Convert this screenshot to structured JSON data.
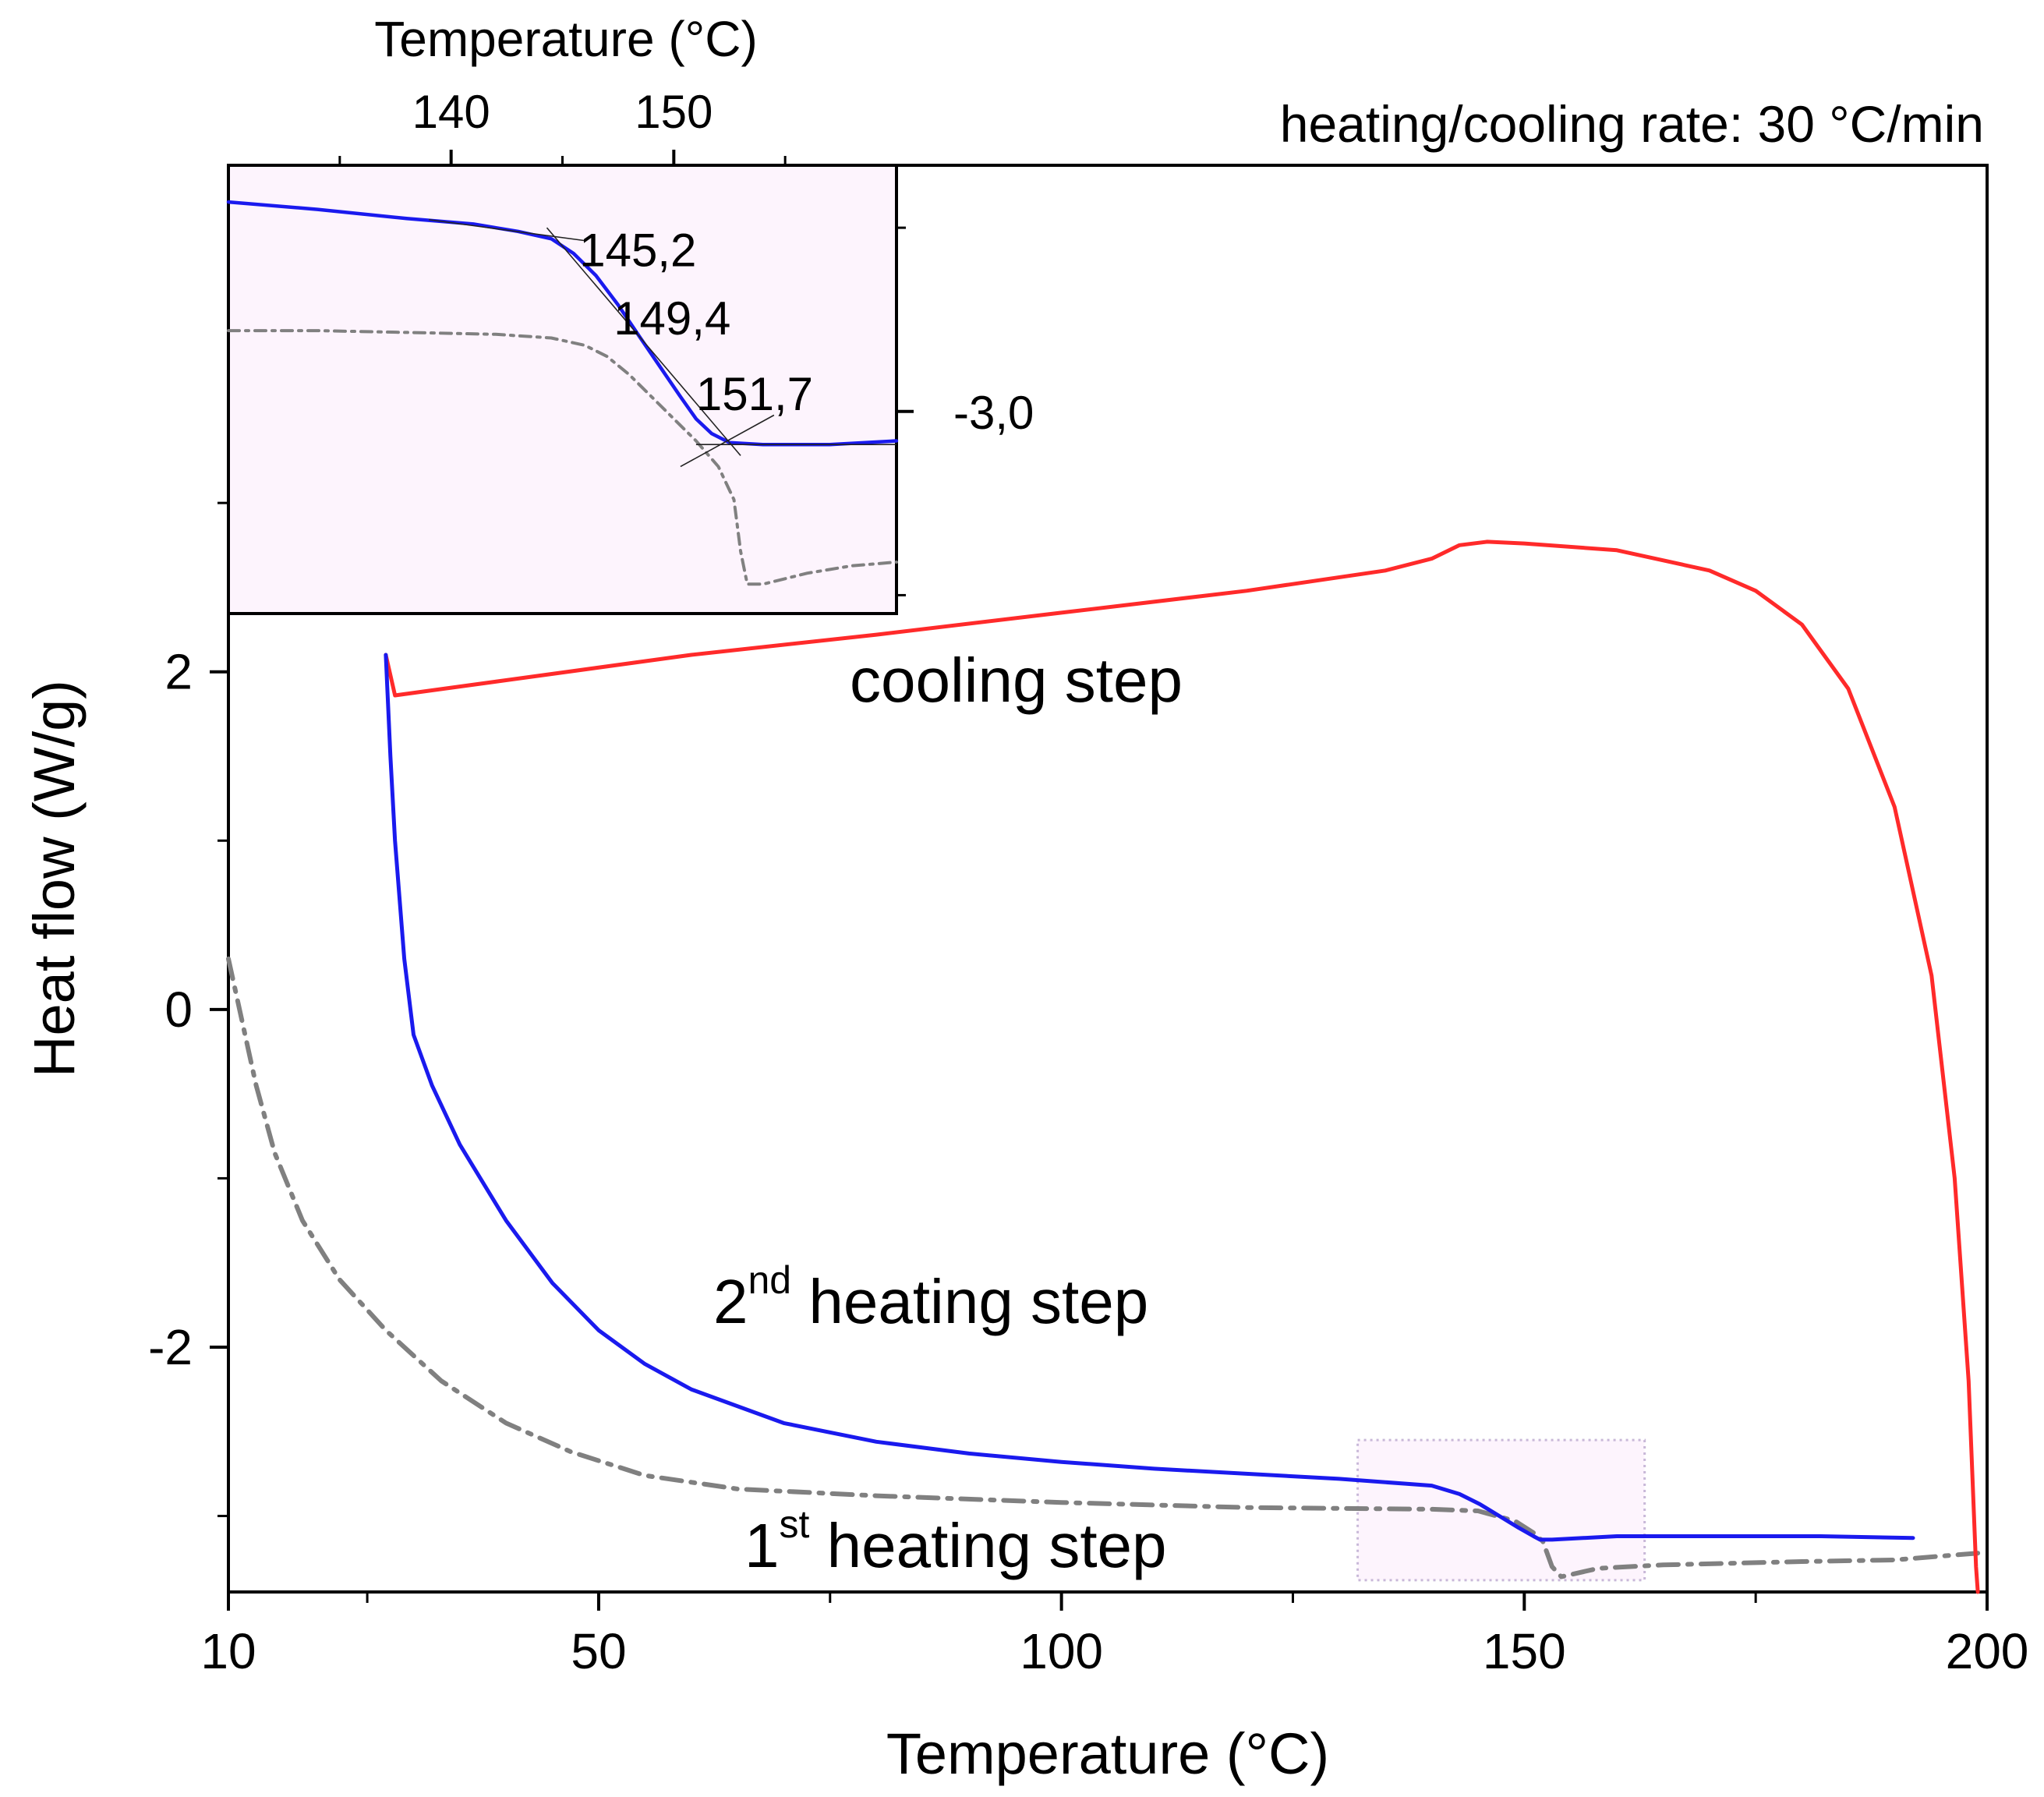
{
  "chart_data": {
    "type": "line",
    "title": "",
    "annotation": "heating/cooling rate: 30 °C/min",
    "xlabel": "Temperature (°C)",
    "ylabel": "Heat flow (W/g)",
    "xlim": [
      10,
      200
    ],
    "ylim": [
      -3.45,
      5.0
    ],
    "xticks": [
      10,
      50,
      100,
      150,
      200
    ],
    "xtick_labels": [
      "10",
      "50",
      "100",
      "150",
      "200"
    ],
    "yticks": [
      -2,
      0,
      2
    ],
    "ytick_labels": [
      "-2",
      "0",
      "2"
    ],
    "colors": {
      "cooling": "#ff2a2a",
      "heating2": "#1a1aee",
      "heating1": "#808080",
      "inset_bg": "#fdf4fd",
      "zoom_box": "#c8b8d8"
    },
    "series": [
      {
        "name": "cooling step",
        "label_main": "cooling step",
        "label_sup": "",
        "label_rest": "",
        "color": "#ff2a2a",
        "style": "solid",
        "points": [
          [
            27,
            2.1
          ],
          [
            28,
            1.86
          ],
          [
            40,
            1.95
          ],
          [
            60,
            2.1
          ],
          [
            80,
            2.22
          ],
          [
            100,
            2.35
          ],
          [
            120,
            2.48
          ],
          [
            135,
            2.6
          ],
          [
            140,
            2.67
          ],
          [
            143,
            2.75
          ],
          [
            146,
            2.77
          ],
          [
            150,
            2.76
          ],
          [
            160,
            2.72
          ],
          [
            170,
            2.6
          ],
          [
            175,
            2.48
          ],
          [
            180,
            2.28
          ],
          [
            185,
            1.9
          ],
          [
            190,
            1.2
          ],
          [
            194,
            0.2
          ],
          [
            196.5,
            -1.0
          ],
          [
            198,
            -2.2
          ],
          [
            198.8,
            -3.3
          ],
          [
            199,
            -3.45
          ]
        ]
      },
      {
        "name": "2nd heating step",
        "label_main": "2",
        "label_sup": "nd",
        "label_rest": " heating step",
        "color": "#1a1aee",
        "style": "solid",
        "points": [
          [
            27,
            2.1
          ],
          [
            27.5,
            1.5
          ],
          [
            28,
            1.0
          ],
          [
            29,
            0.3
          ],
          [
            30,
            -0.15
          ],
          [
            32,
            -0.45
          ],
          [
            35,
            -0.8
          ],
          [
            40,
            -1.25
          ],
          [
            45,
            -1.62
          ],
          [
            50,
            -1.9
          ],
          [
            55,
            -2.1
          ],
          [
            60,
            -2.25
          ],
          [
            70,
            -2.45
          ],
          [
            80,
            -2.56
          ],
          [
            90,
            -2.63
          ],
          [
            100,
            -2.68
          ],
          [
            110,
            -2.72
          ],
          [
            120,
            -2.75
          ],
          [
            130,
            -2.78
          ],
          [
            140,
            -2.82
          ],
          [
            143,
            -2.87
          ],
          [
            145.2,
            -2.93
          ],
          [
            147,
            -2.99
          ],
          [
            149.4,
            -3.07
          ],
          [
            151,
            -3.12
          ],
          [
            151.7,
            -3.14
          ],
          [
            153,
            -3.14
          ],
          [
            160,
            -3.12
          ],
          [
            170,
            -3.12
          ],
          [
            182,
            -3.12
          ],
          [
            192,
            -3.13
          ]
        ]
      },
      {
        "name": "1st heating step",
        "label_main": "1",
        "label_sup": "st",
        "label_rest": " heating step",
        "color": "#808080",
        "style": "dashdot",
        "points": [
          [
            10,
            0.3
          ],
          [
            11,
            0.05
          ],
          [
            13,
            -0.45
          ],
          [
            15,
            -0.85
          ],
          [
            18,
            -1.25
          ],
          [
            22,
            -1.6
          ],
          [
            27,
            -1.9
          ],
          [
            33,
            -2.2
          ],
          [
            40,
            -2.45
          ],
          [
            47,
            -2.62
          ],
          [
            55,
            -2.76
          ],
          [
            65,
            -2.84
          ],
          [
            80,
            -2.88
          ],
          [
            100,
            -2.92
          ],
          [
            120,
            -2.95
          ],
          [
            140,
            -2.96
          ],
          [
            145,
            -2.97
          ],
          [
            149,
            -3.03
          ],
          [
            151,
            -3.1
          ],
          [
            152,
            -3.15
          ],
          [
            153,
            -3.3
          ],
          [
            154,
            -3.36
          ],
          [
            158,
            -3.31
          ],
          [
            165,
            -3.29
          ],
          [
            180,
            -3.27
          ],
          [
            190,
            -3.26
          ],
          [
            199,
            -3.22
          ]
        ]
      }
    ],
    "zoom_region": {
      "x": [
        132,
        163
      ],
      "y": [
        -3.38,
        -2.55
      ]
    },
    "inset": {
      "xlabel": "Temperature (°C)",
      "xlim": [
        130,
        160
      ],
      "ylim": [
        -3.55,
        -2.33
      ],
      "xticks": [
        140,
        150
      ],
      "xtick_labels": [
        "140",
        "150"
      ],
      "xminor": [
        135,
        145,
        155
      ],
      "yticks": [
        -2.5,
        -3.0,
        -3.5
      ],
      "ytick_label": "-3,0",
      "ytick_label_value": -3.0,
      "series": [
        {
          "name": "2nd heating step",
          "color": "#1a1aee",
          "style": "solid",
          "points": [
            [
              130,
              -2.43
            ],
            [
              134,
              -2.45
            ],
            [
              138,
              -2.475
            ],
            [
              141,
              -2.49
            ],
            [
              143,
              -2.51
            ],
            [
              144.5,
              -2.53
            ],
            [
              145.5,
              -2.57
            ],
            [
              146.5,
              -2.63
            ],
            [
              147.5,
              -2.71
            ],
            [
              148.5,
              -2.8
            ],
            [
              149.4,
              -2.88
            ],
            [
              150.3,
              -2.96
            ],
            [
              151,
              -3.02
            ],
            [
              151.7,
              -3.06
            ],
            [
              152.5,
              -3.085
            ],
            [
              154,
              -3.09
            ],
            [
              157,
              -3.09
            ],
            [
              160,
              -3.08
            ]
          ]
        },
        {
          "name": "1st heating step",
          "color": "#808080",
          "style": "dashdot",
          "points": [
            [
              130,
              -2.78
            ],
            [
              134,
              -2.78
            ],
            [
              138,
              -2.785
            ],
            [
              142,
              -2.79
            ],
            [
              144.5,
              -2.8
            ],
            [
              146,
              -2.82
            ],
            [
              147,
              -2.85
            ],
            [
              148,
              -2.9
            ],
            [
              149,
              -2.96
            ],
            [
              150,
              -3.02
            ],
            [
              151,
              -3.08
            ],
            [
              152,
              -3.15
            ],
            [
              152.7,
              -3.24
            ],
            [
              153,
              -3.38
            ],
            [
              153.3,
              -3.47
            ],
            [
              154,
              -3.47
            ],
            [
              156,
              -3.44
            ],
            [
              158,
              -3.42
            ],
            [
              160,
              -3.41
            ]
          ]
        }
      ],
      "annotations": [
        {
          "text": "145,2",
          "x": 145.2
        },
        {
          "text": "149,4",
          "x": 149.4
        },
        {
          "text": "151,7",
          "x": 151.7
        }
      ],
      "tangents": [
        {
          "p1": [
            139,
            -2.478
          ],
          "p2": [
            146,
            -2.535
          ]
        },
        {
          "p1": [
            144.3,
            -2.5
          ],
          "p2": [
            153,
            -3.12
          ]
        },
        {
          "p1": [
            150.3,
            -3.15
          ],
          "p2": [
            154.5,
            -3.01
          ]
        },
        {
          "p1": [
            151,
            -3.09
          ],
          "p2": [
            160,
            -3.09
          ]
        }
      ]
    }
  }
}
